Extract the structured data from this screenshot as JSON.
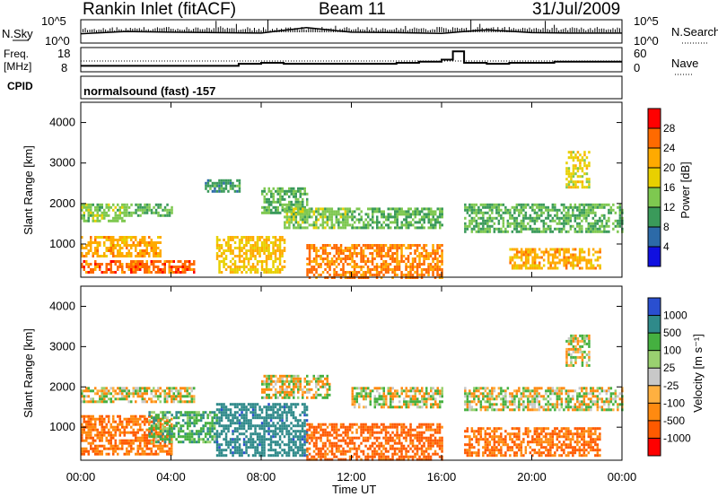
{
  "header": {
    "station": "Rankin Inlet (fitACF)",
    "beam": "Beam 11",
    "date": "31/Jul/2009"
  },
  "top_panels": {
    "nsky_label": "N.Sky",
    "nsearch_label": "N.Search",
    "freq_label_line1": "Freq.",
    "freq_label_line2": "[MHz]",
    "nave_label": "Nave",
    "cpid_label": "CPID",
    "noise_ticks": [
      "10^5",
      "10^0"
    ],
    "freq_ticks": [
      "18",
      "8"
    ],
    "nave_ticks": [
      "60",
      "0"
    ],
    "program": "normalsound (fast) -157"
  },
  "power_panel": {
    "ylabel": "Slant Range [km]",
    "colorbar_label": "Power [dB]",
    "colorbar_ticks": [
      "28",
      "24",
      "20",
      "16",
      "12",
      "8",
      "4"
    ],
    "colorbar_colors": [
      "#ff0000",
      "#ff6a00",
      "#ffaa00",
      "#e8d000",
      "#7ec850",
      "#3a9a5a",
      "#2c6aa8",
      "#1010e0"
    ]
  },
  "velocity_panel": {
    "ylabel": "Slant Range [km]",
    "colorbar_label": "Velocity [m s⁻¹]",
    "colorbar_ticks": [
      "1000",
      "500",
      "100",
      "25",
      "-25",
      "-100",
      "-500",
      "-1000"
    ],
    "colorbar_colors": [
      "#2a4fd0",
      "#2f8a8a",
      "#45b040",
      "#9ad070",
      "#c8c8c8",
      "#ffb040",
      "#ff8a10",
      "#ff5a00",
      "#ff0000"
    ]
  },
  "xaxis": {
    "label": "Time UT",
    "ticks": [
      "00:00",
      "04:00",
      "08:00",
      "12:00",
      "16:00",
      "20:00",
      "00:00"
    ]
  },
  "chart_data": [
    {
      "type": "line",
      "name": "noise",
      "ylabel": "N.Sky",
      "yscale": "log",
      "ylim": [
        1,
        100000
      ],
      "x": [
        0,
        2,
        4,
        6,
        8,
        10,
        12,
        14,
        16,
        18,
        20,
        22,
        24
      ],
      "values": [
        80,
        300,
        200,
        150,
        120,
        3000,
        200,
        150,
        100,
        800,
        150,
        120,
        120
      ]
    },
    {
      "type": "line",
      "name": "freq-nave",
      "ylabel": "Freq. [MHz]",
      "ylim": [
        8,
        18
      ],
      "x": [
        0,
        2,
        4,
        6,
        7,
        8,
        9,
        11,
        14,
        15,
        16,
        16.5,
        17,
        18,
        19,
        21,
        22,
        23,
        24
      ],
      "values": [
        10,
        10,
        10,
        10,
        11,
        11.5,
        11,
        11,
        11.5,
        12,
        13,
        17,
        11.5,
        11,
        11.5,
        12,
        12,
        12,
        12
      ]
    },
    {
      "type": "heatmap",
      "name": "power",
      "ylabel": "Slant Range [km]",
      "xlabel": "Time UT",
      "ylim": [
        180,
        4500
      ],
      "xlim": [
        0,
        24
      ],
      "colorbar": "Power [dB]",
      "clim": [
        0,
        32
      ],
      "bands": [
        {
          "t0": 0,
          "t1": 2,
          "r0": 1600,
          "r1": 2000,
          "value": 14
        },
        {
          "t0": 0,
          "t1": 3.5,
          "r0": 700,
          "r1": 1200,
          "value": 22
        },
        {
          "t0": 0,
          "t1": 5,
          "r0": 300,
          "r1": 600,
          "value": 26
        },
        {
          "t0": 2,
          "t1": 4,
          "r0": 1700,
          "r1": 2000,
          "value": 12
        },
        {
          "t0": 5.5,
          "t1": 7,
          "r0": 2300,
          "r1": 2600,
          "value": 10
        },
        {
          "t0": 6,
          "t1": 9,
          "r0": 300,
          "r1": 1200,
          "value": 20
        },
        {
          "t0": 8,
          "t1": 10,
          "r0": 1800,
          "r1": 2400,
          "value": 12
        },
        {
          "t0": 9,
          "t1": 12,
          "r0": 1400,
          "r1": 1900,
          "value": 14
        },
        {
          "t0": 10,
          "t1": 16,
          "r0": 200,
          "r1": 1000,
          "value": 25
        },
        {
          "t0": 12,
          "t1": 16,
          "r0": 1400,
          "r1": 1900,
          "value": 12
        },
        {
          "t0": 17,
          "t1": 24,
          "r0": 1300,
          "r1": 2000,
          "value": 12
        },
        {
          "t0": 19,
          "t1": 23,
          "r0": 400,
          "r1": 900,
          "value": 22
        },
        {
          "t0": 21.5,
          "t1": 22.5,
          "r0": 2400,
          "r1": 3300,
          "value": 18
        }
      ]
    },
    {
      "type": "heatmap",
      "name": "velocity",
      "ylabel": "Slant Range [km]",
      "xlabel": "Time UT",
      "ylim": [
        180,
        4500
      ],
      "xlim": [
        0,
        24
      ],
      "colorbar": "Velocity [m s⁻¹]",
      "clim": [
        -1000,
        1000
      ],
      "bands": [
        {
          "t0": 0,
          "t1": 5,
          "r0": 1600,
          "r1": 2000,
          "value": 0
        },
        {
          "t0": 0,
          "t1": 4,
          "r0": 300,
          "r1": 1300,
          "value": -300
        },
        {
          "t0": 3,
          "t1": 6,
          "r0": 600,
          "r1": 1400,
          "value": 200
        },
        {
          "t0": 6,
          "t1": 10,
          "r0": 300,
          "r1": 1600,
          "value": 600
        },
        {
          "t0": 8,
          "t1": 11,
          "r0": 1700,
          "r1": 2300,
          "value": 0
        },
        {
          "t0": 10,
          "t1": 16,
          "r0": 200,
          "r1": 1100,
          "value": -400
        },
        {
          "t0": 12,
          "t1": 16,
          "r0": 1500,
          "r1": 2000,
          "value": 0
        },
        {
          "t0": 17,
          "t1": 24,
          "r0": 1400,
          "r1": 2000,
          "value": 0
        },
        {
          "t0": 17,
          "t1": 23,
          "r0": 300,
          "r1": 1000,
          "value": -300
        },
        {
          "t0": 21.5,
          "t1": 22.5,
          "r0": 2500,
          "r1": 3300,
          "value": 0
        }
      ]
    }
  ]
}
